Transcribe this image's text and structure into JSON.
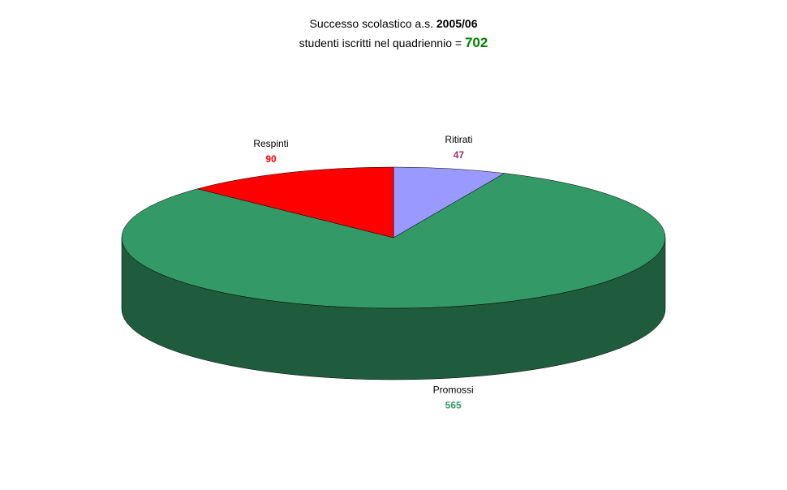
{
  "chart_data": {
    "type": "pie",
    "title": {
      "text": "Successo scolastico a.s. ",
      "year": "2005/06"
    },
    "subtitle": {
      "text": "studenti iscritti nel quadriennio = ",
      "total": "702",
      "total_color": "#008000"
    },
    "categories": [
      "Ritirati",
      "Promossi",
      "Respinti"
    ],
    "values": [
      47,
      565,
      90
    ],
    "colors": [
      "#9999ff",
      "#339966",
      "#ff0000"
    ],
    "value_label_colors": [
      "#993366",
      "#339966",
      "#ff0000"
    ]
  }
}
